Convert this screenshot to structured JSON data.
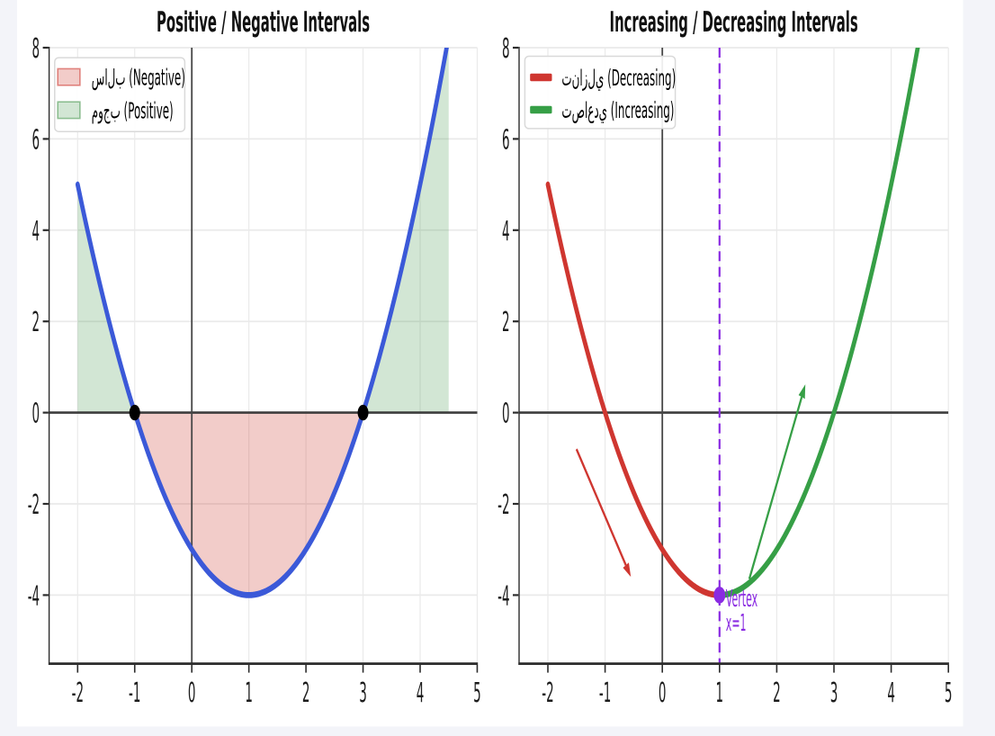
{
  "canvas": {
    "page_background": "#f3f4f9",
    "figure_background": "#ffffff"
  },
  "palette": {
    "blue_curve": "#3b59d8",
    "red_curve": "#cf3630",
    "green_curve": "#369f46",
    "purple": "#8a2be2",
    "negative_fill": "rgba(204,51,41,0.25)",
    "negative_fill_edge": "rgba(204,51,41,0.55)",
    "positive_fill": "rgba(52,140,60,0.22)",
    "positive_fill_edge": "rgba(52,140,60,0.5)",
    "grid": "#eaeaea",
    "spine": "#2c2c2c",
    "zero_line": "#3d3d3d",
    "tick_text": "#1c1c1c",
    "title_text": "#111111",
    "legend_border": "#d9d9d9",
    "legend_bg": "rgba(255,255,255,0.9)"
  },
  "chart_data": [
    {
      "type": "line",
      "title": "Positive / Negative Intervals",
      "function": "f(x) = x^2 - 2x - 3",
      "coeffs": {
        "a": 1,
        "b": -2,
        "c": -3
      },
      "xlim": [
        -2.5,
        5
      ],
      "ylim": [
        -5.5,
        8
      ],
      "xticks": [
        -2,
        -1,
        0,
        1,
        2,
        3,
        4,
        5
      ],
      "xtick_labels": [
        "-2",
        "-1",
        "0",
        "1",
        "2",
        "3",
        "4",
        "5"
      ],
      "yticks": [
        8,
        6,
        4,
        2,
        0,
        -2,
        -4
      ],
      "ytick_labels": [
        "8",
        "6",
        "4",
        "2",
        "0",
        "-2",
        "-4"
      ],
      "grid": true,
      "zero_lines": true,
      "curve": {
        "x_from": -2,
        "x_to": 4.5,
        "color": "#3b59d8"
      },
      "fills": [
        {
          "name": "negative-region",
          "x_from": -1,
          "x_to": 3,
          "color": "rgba(204,51,41,0.25)"
        },
        {
          "name": "positive-region-left",
          "x_from": -2,
          "x_to": -1,
          "color": "rgba(52,140,60,0.22)"
        },
        {
          "name": "positive-region-right",
          "x_from": 3,
          "x_to": 4.5,
          "color": "rgba(52,140,60,0.22)"
        }
      ],
      "points": [
        {
          "name": "root",
          "x": -1,
          "y": 0,
          "color": "#000000"
        },
        {
          "name": "root",
          "x": 3,
          "y": 0,
          "color": "#000000"
        }
      ],
      "legend": {
        "position": "upper left",
        "entries": [
          {
            "swatch": "patch",
            "fill": "rgba(204,51,41,0.25)",
            "edge": "rgba(204,51,41,0.55)",
            "label": "‭س‌ا‌ل‌ب‬ (Negative)"
          },
          {
            "swatch": "patch",
            "fill": "rgba(52,140,60,0.22)",
            "edge": "rgba(52,140,60,0.5)",
            "label": "‭م‌و‌ج‌ب‬ (Positive)"
          }
        ]
      }
    },
    {
      "type": "line",
      "title": "Increasing / Decreasing Intervals",
      "function": "f(x) = x^2 - 2x - 3",
      "coeffs": {
        "a": 1,
        "b": -2,
        "c": -3
      },
      "xlim": [
        -2.5,
        5
      ],
      "ylim": [
        -5.5,
        8
      ],
      "xticks": [
        -2,
        -1,
        0,
        1,
        2,
        3,
        4,
        5
      ],
      "xtick_labels": [
        "-2",
        "-1",
        "0",
        "1",
        "2",
        "3",
        "4",
        "5"
      ],
      "yticks": [
        8,
        6,
        4,
        2,
        0,
        -2,
        -4
      ],
      "ytick_labels": [
        "8",
        "6",
        "4",
        "2",
        "0",
        "-2",
        "-4"
      ],
      "grid": true,
      "zero_lines": true,
      "segments": [
        {
          "name": "decreasing",
          "x_from": -2,
          "x_to": 1,
          "color": "#cf3630"
        },
        {
          "name": "increasing",
          "x_from": 1,
          "x_to": 4.5,
          "color": "#369f46"
        }
      ],
      "vline": {
        "x": 1,
        "color": "#8a2be2"
      },
      "vertex": {
        "x": 1,
        "y": -4,
        "color": "#8a2be2"
      },
      "annotations": [
        {
          "text": "Vertex",
          "x": 1.11,
          "y_baseline": -4.25
        },
        {
          "text": "x=1",
          "x": 1.11,
          "y_baseline": -4.78
        }
      ],
      "arrows": [
        {
          "name": "decreasing-arrow",
          "from": [
            -1.5,
            -0.8
          ],
          "to": [
            -0.55,
            -3.6
          ],
          "color": "#cf3630"
        },
        {
          "name": "increasing-arrow",
          "from": [
            1.52,
            -3.65
          ],
          "to": [
            2.5,
            0.62
          ],
          "color": "#369f46"
        }
      ],
      "legend": {
        "position": "upper left",
        "entries": [
          {
            "swatch": "line",
            "fill": "#cf3630",
            "label": "‭ت‌ن‌ا‌ز‌ل‌ي‬ (Decreasing)"
          },
          {
            "swatch": "line",
            "fill": "#369f46",
            "label": "‭ت‌ص‌ا‌ع‌د‌ي‬ (Increasing)"
          }
        ]
      }
    }
  ]
}
